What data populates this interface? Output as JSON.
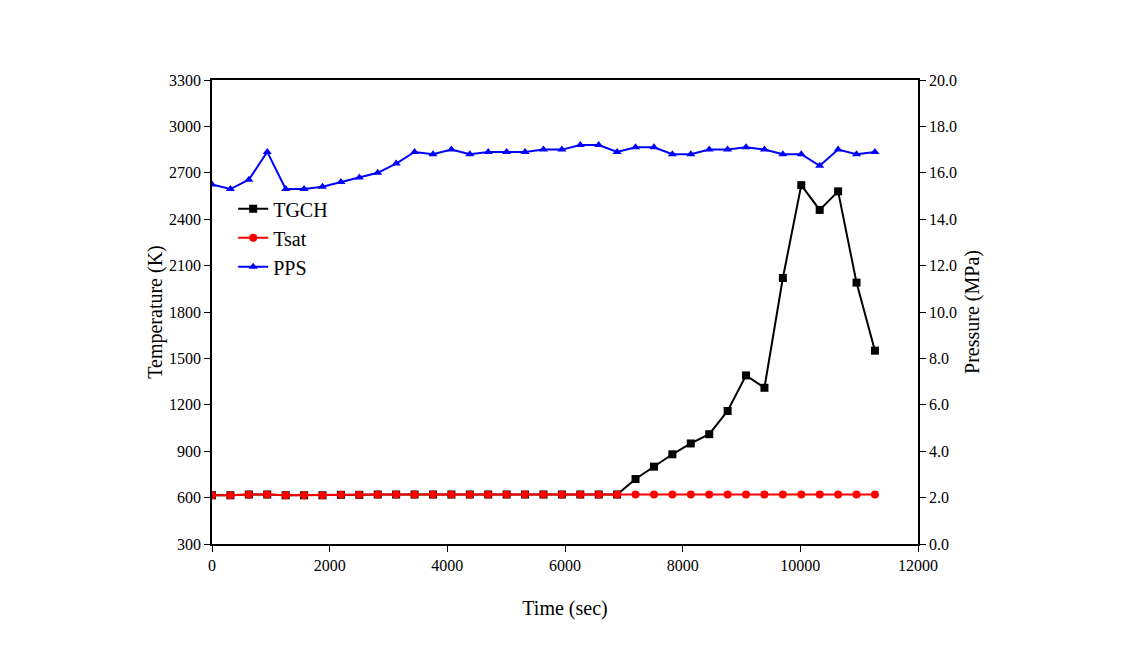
{
  "chart_data": {
    "type": "line",
    "x_label": "Time (sec)",
    "y_label": "Temperature (K)",
    "y2_label": "Pressure (MPa)",
    "x": [
      0,
      313,
      626,
      939,
      1252,
      1565,
      1878,
      2191,
      2504,
      2817,
      3130,
      3443,
      3756,
      4069,
      4382,
      4695,
      5008,
      5321,
      5634,
      5947,
      6260,
      6573,
      6886,
      7199,
      7512,
      7825,
      8138,
      8451,
      8764,
      9077,
      9390,
      9703,
      10016,
      10329,
      10642,
      10955,
      11268
    ],
    "series": [
      {
        "name": "TGCH",
        "color": "#000000",
        "marker": "square",
        "values": [
          615,
          615,
          620,
          620,
          615,
          615,
          615,
          618,
          618,
          620,
          620,
          620,
          620,
          620,
          620,
          620,
          620,
          620,
          620,
          620,
          620,
          620,
          620,
          720,
          800,
          880,
          950,
          1010,
          1160,
          1390,
          1310,
          2020,
          2620,
          2460,
          2580,
          1990,
          1550
        ]
      },
      {
        "name": "Tsat",
        "color": "#ff0000",
        "marker": "circle",
        "values": [
          615,
          615,
          620,
          620,
          615,
          615,
          615,
          618,
          618,
          620,
          620,
          620,
          620,
          620,
          620,
          620,
          620,
          620,
          620,
          620,
          620,
          620,
          620,
          620,
          620,
          620,
          620,
          620,
          620,
          620,
          620,
          620,
          620,
          620,
          620,
          620,
          620
        ]
      },
      {
        "name": "PPS",
        "color": "#0000ff",
        "marker": "triangle",
        "axis": "y2",
        "values": [
          15.5,
          15.3,
          15.7,
          16.9,
          15.3,
          15.3,
          15.4,
          15.6,
          15.8,
          16.0,
          16.4,
          16.9,
          16.8,
          17.0,
          16.8,
          16.9,
          16.9,
          16.9,
          17.0,
          17.0,
          17.2,
          17.2,
          16.9,
          17.1,
          17.1,
          16.8,
          16.8,
          17.0,
          17.0,
          17.1,
          17.0,
          16.8,
          16.8,
          16.3,
          17.0,
          16.8,
          16.9
        ]
      }
    ],
    "xlim": [
      0,
      12000
    ],
    "xticks": [
      0,
      2000,
      4000,
      6000,
      8000,
      10000,
      12000
    ],
    "ylim": [
      300,
      3300
    ],
    "yticks": [
      300,
      600,
      900,
      1200,
      1500,
      1800,
      2100,
      2400,
      2700,
      3000,
      3300
    ],
    "y2lim": [
      0,
      20
    ],
    "y2ticks": [
      {
        "value": 0,
        "label": "0.0"
      },
      {
        "value": 2,
        "label": "2.0"
      },
      {
        "value": 4,
        "label": "4.0"
      },
      {
        "value": 6,
        "label": "6.0"
      },
      {
        "value": 8,
        "label": "8.0"
      },
      {
        "value": 10,
        "label": "10.0"
      },
      {
        "value": 12,
        "label": "12.0"
      },
      {
        "value": 14,
        "label": "14.0"
      },
      {
        "value": 16,
        "label": "16.0"
      },
      {
        "value": 18,
        "label": "18.0"
      },
      {
        "value": 20,
        "label": "20.0"
      }
    ],
    "grid": false,
    "legend": "left"
  }
}
